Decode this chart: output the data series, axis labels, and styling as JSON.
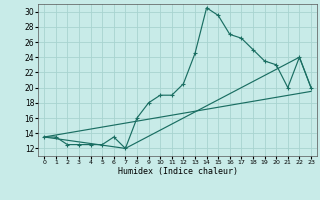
{
  "title": "",
  "xlabel": "Humidex (Indice chaleur)",
  "xlim": [
    -0.5,
    23.5
  ],
  "ylim": [
    11,
    31
  ],
  "xticks": [
    0,
    1,
    2,
    3,
    4,
    5,
    6,
    7,
    8,
    9,
    10,
    11,
    12,
    13,
    14,
    15,
    16,
    17,
    18,
    19,
    20,
    21,
    22,
    23
  ],
  "yticks": [
    12,
    14,
    16,
    18,
    20,
    22,
    24,
    26,
    28,
    30
  ],
  "background_color": "#c8ebe8",
  "grid_color": "#a8d4d0",
  "line_color": "#1a6e62",
  "line1_x": [
    0,
    1,
    2,
    3,
    4,
    5,
    6,
    7,
    8,
    9,
    10,
    11,
    12,
    13,
    14,
    15,
    16,
    17,
    18,
    19,
    20,
    21,
    22,
    23
  ],
  "line1_y": [
    13.5,
    13.5,
    12.5,
    12.5,
    12.5,
    12.5,
    13.5,
    12,
    16,
    18,
    19,
    19,
    20.5,
    24.5,
    30.5,
    29.5,
    27,
    26.5,
    25,
    23.5,
    23,
    20,
    24,
    20
  ],
  "line2_x": [
    0,
    7,
    22,
    23
  ],
  "line2_y": [
    13.5,
    12,
    24,
    20
  ],
  "line3_x": [
    0,
    23
  ],
  "line3_y": [
    13.5,
    19.5
  ]
}
